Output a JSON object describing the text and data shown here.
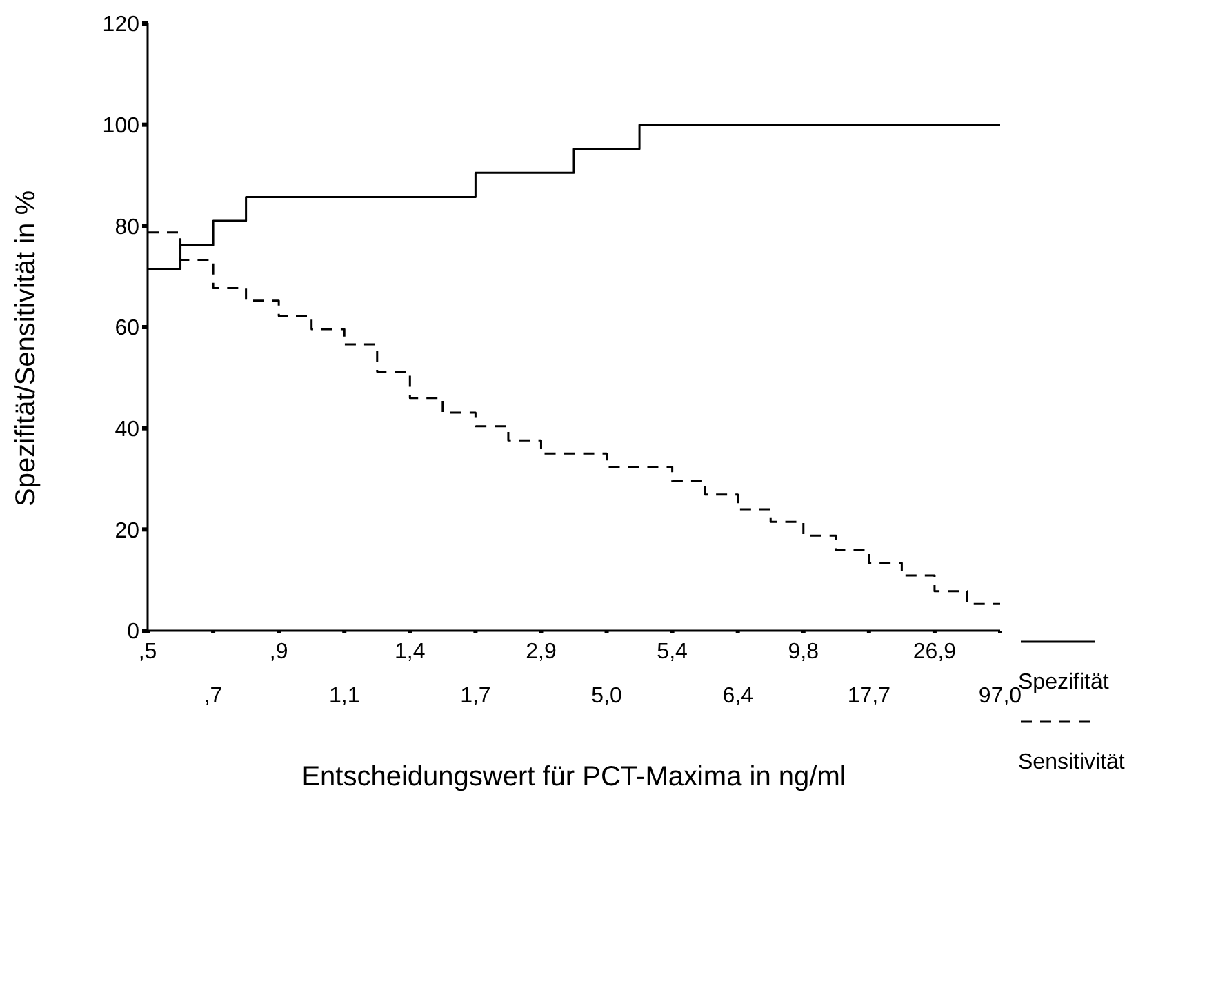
{
  "chart_data": {
    "type": "step",
    "xlabel": "Entscheidungswert für PCT-Maxima in ng/ml",
    "ylabel": "Spezifität/Sensitivität in %",
    "categories": [
      ",5",
      null,
      ",7",
      null,
      ",9",
      null,
      "1,1",
      null,
      "1,4",
      null,
      "1,7",
      null,
      "2,9",
      null,
      "5,0",
      null,
      "5,4",
      null,
      "6,4",
      null,
      "9,8",
      null,
      "17,7",
      null,
      "26,9",
      null,
      "97,0"
    ],
    "series": [
      {
        "name": "Spezifität",
        "color": "#000000",
        "line_style": "solid",
        "values": [
          71.4,
          76.2,
          81.0,
          85.7,
          85.7,
          85.7,
          85.7,
          85.7,
          85.7,
          85.7,
          90.5,
          90.5,
          90.5,
          95.2,
          95.2,
          100,
          100,
          100,
          100,
          100,
          100,
          100,
          100,
          100,
          100,
          100,
          100
        ]
      },
      {
        "name": "Sensitivität",
        "color": "#000000",
        "line_style": "dashed",
        "values": [
          78.7,
          73.3,
          67.7,
          65.2,
          62.2,
          59.6,
          56.6,
          51.2,
          46.0,
          43.1,
          40.4,
          37.6,
          35.0,
          35.0,
          32.4,
          32.4,
          29.6,
          26.9,
          24.0,
          21.5,
          18.8,
          15.9,
          13.4,
          10.9,
          7.8,
          5.3,
          5.3
        ]
      }
    ],
    "ylim": [
      0,
      120
    ],
    "yticks": [
      0,
      20,
      40,
      60,
      80,
      100,
      120
    ],
    "legend": "right",
    "grid": false,
    "marker": "none"
  }
}
